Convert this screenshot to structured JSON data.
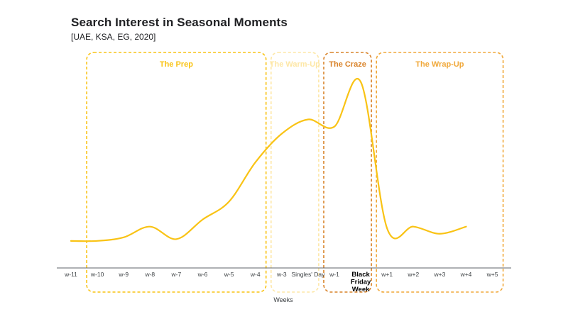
{
  "title": "Search Interest in Seasonal Moments",
  "subtitle": "[UAE, KSA, EG, 2020]",
  "colors": {
    "line": "#f9c315",
    "prep": "#f9c315",
    "warmup": "#fde7a6",
    "craze": "#d9832a",
    "wrapup": "#f0a83a",
    "axis": "#5f6368"
  },
  "chart_data": {
    "type": "line",
    "title": "Search Interest in Seasonal Moments",
    "subtitle": "[UAE, KSA, EG, 2020]",
    "xlabel": "Weeks",
    "ylabel": "",
    "categories": [
      "w-11",
      "w-10",
      "w-9",
      "w-8",
      "w-7",
      "w-6",
      "w-5",
      "w-4",
      "w-3",
      "Singles' Day",
      "w-1",
      "Black Friday Week",
      "w+1",
      "w+2",
      "w+3",
      "w+4",
      "w+5"
    ],
    "category_lines": [
      [
        "w-11"
      ],
      [
        "w-10"
      ],
      [
        "w-9"
      ],
      [
        "w-8"
      ],
      [
        "w-7"
      ],
      [
        "w-6"
      ],
      [
        "w-5"
      ],
      [
        "w-4"
      ],
      [
        "w-3"
      ],
      [
        "Singles' Day"
      ],
      [
        "w-1"
      ],
      [
        "Black",
        "Friday",
        "Week"
      ],
      [
        "w+1"
      ],
      [
        "w+2"
      ],
      [
        "w+3"
      ],
      [
        "w+4"
      ],
      [
        "w+5"
      ]
    ],
    "highlight_category": "Black Friday Week",
    "series": [
      {
        "values": [
          8,
          8,
          10,
          16,
          9,
          20,
          30,
          52,
          68,
          76,
          72,
          97,
          15,
          16,
          12,
          16,
          null
        ]
      }
    ],
    "ylim": [
      0,
      100
    ],
    "grid": false,
    "legend": "none",
    "phases": [
      {
        "label": "The Prep",
        "start": "w-10",
        "end": "w-4",
        "color": "#f9c315"
      },
      {
        "label": "The Warm-Up",
        "start": "w-3",
        "end": "Singles' Day",
        "color": "#fde7a6"
      },
      {
        "label": "The Craze",
        "start": "w-1",
        "end": "Black Friday Week",
        "color": "#d9832a"
      },
      {
        "label": "The Wrap-Up",
        "start": "w+1",
        "end": "w+5",
        "color": "#f0a83a"
      }
    ]
  }
}
